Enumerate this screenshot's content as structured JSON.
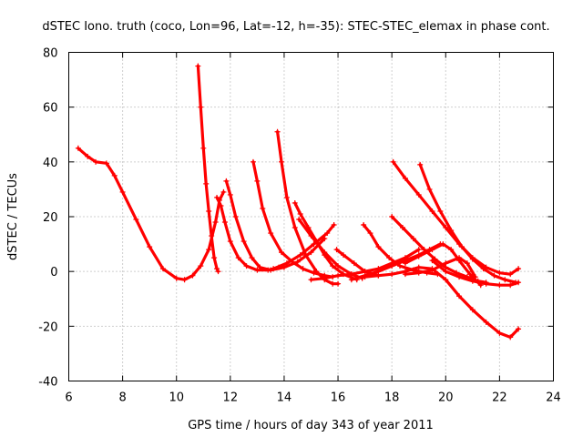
{
  "chart_data": {
    "type": "scatter",
    "title": "dSTEC Iono. truth (coco, Lon=96, Lat=-12, h=-35): STEC-STEC_elemax in phase cont.",
    "xlabel": "GPS time / hours of day 343 of year 2011",
    "ylabel": "dSTEC  / TECUs",
    "xlim": [
      6,
      24
    ],
    "ylim": [
      -40,
      80
    ],
    "xticks": [
      "6",
      "8",
      "10",
      "12",
      "14",
      "16",
      "18",
      "20",
      "22",
      "24"
    ],
    "yticks": [
      "-40",
      "-20",
      "0",
      "20",
      "40",
      "60",
      "80"
    ],
    "grid": true,
    "marker": "+",
    "color": "#ff0000",
    "series": [
      {
        "x": [
          6.35,
          6.7,
          7.0,
          7.4,
          7.7,
          8.0,
          8.5,
          9.0,
          9.5,
          10.0,
          10.3,
          10.6,
          10.9,
          11.2,
          11.45,
          11.6,
          11.75
        ],
        "y": [
          45,
          42,
          40,
          39.5,
          35,
          29,
          19,
          9,
          1,
          -2.5,
          -3,
          -1.5,
          2,
          8,
          18,
          26,
          29
        ]
      },
      {
        "x": [
          10.8,
          10.9,
          11.0,
          11.1,
          11.2,
          11.3,
          11.4,
          11.5,
          11.55
        ],
        "y": [
          75,
          60,
          45,
          32,
          22,
          13,
          5,
          1,
          0
        ]
      },
      {
        "x": [
          11.5,
          11.65,
          11.8,
          12.0,
          12.3,
          12.6,
          13.0,
          13.4,
          13.8
        ],
        "y": [
          27,
          24,
          18,
          11,
          5,
          2,
          0.5,
          0.5,
          1.5
        ]
      },
      {
        "x": [
          11.85,
          12.0,
          12.2,
          12.5,
          12.8,
          13.1,
          13.5,
          14.0,
          14.5,
          15.0,
          15.5
        ],
        "y": [
          33,
          28,
          20,
          11,
          5,
          1.5,
          0.5,
          1.5,
          3.5,
          7,
          12
        ]
      },
      {
        "x": [
          12.85,
          13.0,
          13.2,
          13.5,
          13.9,
          14.3,
          14.7,
          15.1,
          15.5,
          15.8
        ],
        "y": [
          40,
          33,
          23,
          14,
          7,
          3.5,
          1,
          -0.5,
          -1.5,
          -2
        ]
      },
      {
        "x": [
          13.75,
          13.9,
          14.1,
          14.4,
          14.8,
          15.2,
          15.5,
          15.8,
          16.0
        ],
        "y": [
          51,
          40,
          27,
          16,
          6,
          0,
          -3,
          -4.5,
          -4.5
        ]
      },
      {
        "x": [
          13.6,
          14.1,
          14.6,
          15.1,
          15.6,
          15.85
        ],
        "y": [
          1,
          3,
          6,
          10,
          14,
          17
        ]
      },
      {
        "x": [
          14.4,
          14.6,
          14.9,
          15.2,
          15.5,
          15.8,
          16.2,
          16.7
        ],
        "y": [
          25,
          21,
          16,
          11,
          6,
          2,
          -1,
          -3
        ]
      },
      {
        "x": [
          14.55,
          15.0,
          15.5,
          16.0,
          16.5,
          16.9
        ],
        "y": [
          19,
          13,
          7,
          2,
          -1,
          -2.5
        ]
      },
      {
        "x": [
          15.0,
          15.5,
          16.0,
          16.5,
          17.0,
          17.5,
          18.0,
          18.5,
          19.0
        ],
        "y": [
          -3,
          -2.5,
          -1.5,
          -1,
          0,
          1,
          3,
          5,
          8
        ]
      },
      {
        "x": [
          15.95,
          16.2,
          16.6,
          17.0,
          17.5
        ],
        "y": [
          8,
          6,
          3,
          0,
          -1.5
        ]
      },
      {
        "x": [
          16.95,
          17.2,
          17.5,
          17.9,
          18.3,
          18.8,
          19.3,
          19.7
        ],
        "y": [
          17,
          14,
          9,
          5,
          2,
          0.5,
          -0.5,
          -1
        ]
      },
      {
        "x": [
          16.5,
          17.0,
          17.5,
          18.0,
          18.5,
          19.0,
          19.4,
          19.8
        ],
        "y": [
          -3,
          -1.5,
          0,
          2,
          4,
          6,
          8,
          10
        ]
      },
      {
        "x": [
          18.0,
          18.4,
          18.8,
          19.2,
          19.6,
          20.0,
          20.4,
          20.8,
          21.2,
          21.5
        ],
        "y": [
          20,
          16,
          12,
          8,
          4.5,
          1.5,
          -0.5,
          -2,
          -3.5,
          -4
        ]
      },
      {
        "x": [
          18.05,
          18.5,
          19.0,
          19.5,
          20.0,
          20.5,
          21.0,
          21.5,
          22.0,
          22.4,
          22.7
        ],
        "y": [
          40,
          34,
          28,
          22,
          16,
          10,
          5,
          1.5,
          -0.5,
          -1,
          1
        ]
      },
      {
        "x": [
          19.05,
          19.4,
          19.8,
          20.2,
          20.6,
          21.0,
          21.4,
          21.8,
          22.2,
          22.6
        ],
        "y": [
          39,
          30,
          22,
          15,
          9,
          4.5,
          1,
          -1.5,
          -3,
          -4
        ]
      },
      {
        "x": [
          17.0,
          17.5,
          18.0,
          18.5,
          19.0,
          19.5,
          20.0,
          20.5,
          21.0,
          21.5,
          22.0,
          22.4,
          22.7
        ],
        "y": [
          -2,
          -1.5,
          -1,
          0,
          1.5,
          1,
          -3,
          -9,
          -14,
          -18.5,
          -22.5,
          -24,
          -21
        ]
      },
      {
        "x": [
          18.5,
          19.0,
          19.5,
          19.9,
          20.2,
          20.5,
          20.9,
          21.3
        ],
        "y": [
          3,
          5.5,
          8,
          10,
          8,
          4,
          -1,
          -5
        ]
      },
      {
        "x": [
          18.5,
          19.0,
          19.5,
          20.0,
          20.5,
          20.8,
          21.1
        ],
        "y": [
          -1,
          -0.5,
          0.5,
          3,
          5,
          3,
          -2
        ]
      },
      {
        "x": [
          19.5,
          20.0,
          20.5,
          21.0,
          21.5,
          22.0,
          22.4,
          22.7
        ],
        "y": [
          4,
          0,
          -2,
          -3.5,
          -4.5,
          -5,
          -5,
          -4
        ]
      }
    ]
  }
}
